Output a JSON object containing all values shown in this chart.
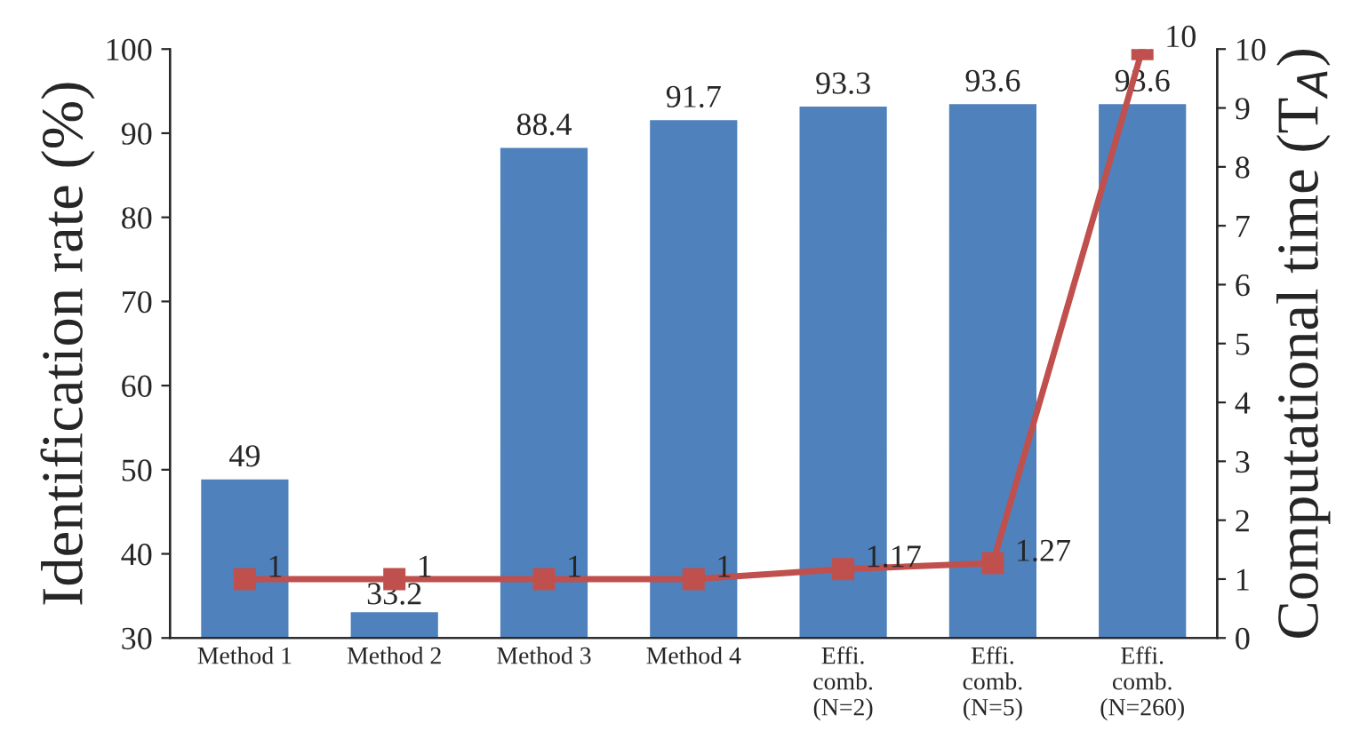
{
  "chart_data": {
    "type": "bar",
    "ylabel": "Identification rate (%)",
    "y2label": "Computational time (T$_{A}$)",
    "categories": [
      "Method 1",
      "Method 2",
      "Method 3",
      "Method 4",
      "Effi.\ncomb.\n(N=2)",
      "Effi.\ncomb.\n(N=5)",
      "Effi.\ncomb.\n(N=260)"
    ],
    "series": [
      {
        "type": "bar",
        "color": "#4f81bd",
        "values": [
          49,
          33.2,
          88.4,
          91.7,
          93.3,
          93.6,
          93.6
        ]
      },
      {
        "type": "line",
        "axis": "y2",
        "color": "#c0504d",
        "marker": "square",
        "line_style": "solid",
        "values": [
          1,
          1,
          1,
          1,
          1.17,
          1.27,
          10
        ]
      }
    ],
    "ylim": [
      30,
      100
    ],
    "yticks": [
      30,
      40,
      50,
      60,
      70,
      80,
      90,
      100
    ],
    "y2lim": [
      0,
      10
    ],
    "y2ticks": [
      0,
      1,
      2,
      3,
      4,
      5,
      6,
      7,
      8,
      9,
      10
    ],
    "data_labels": true,
    "grid": false,
    "legend": false
  }
}
